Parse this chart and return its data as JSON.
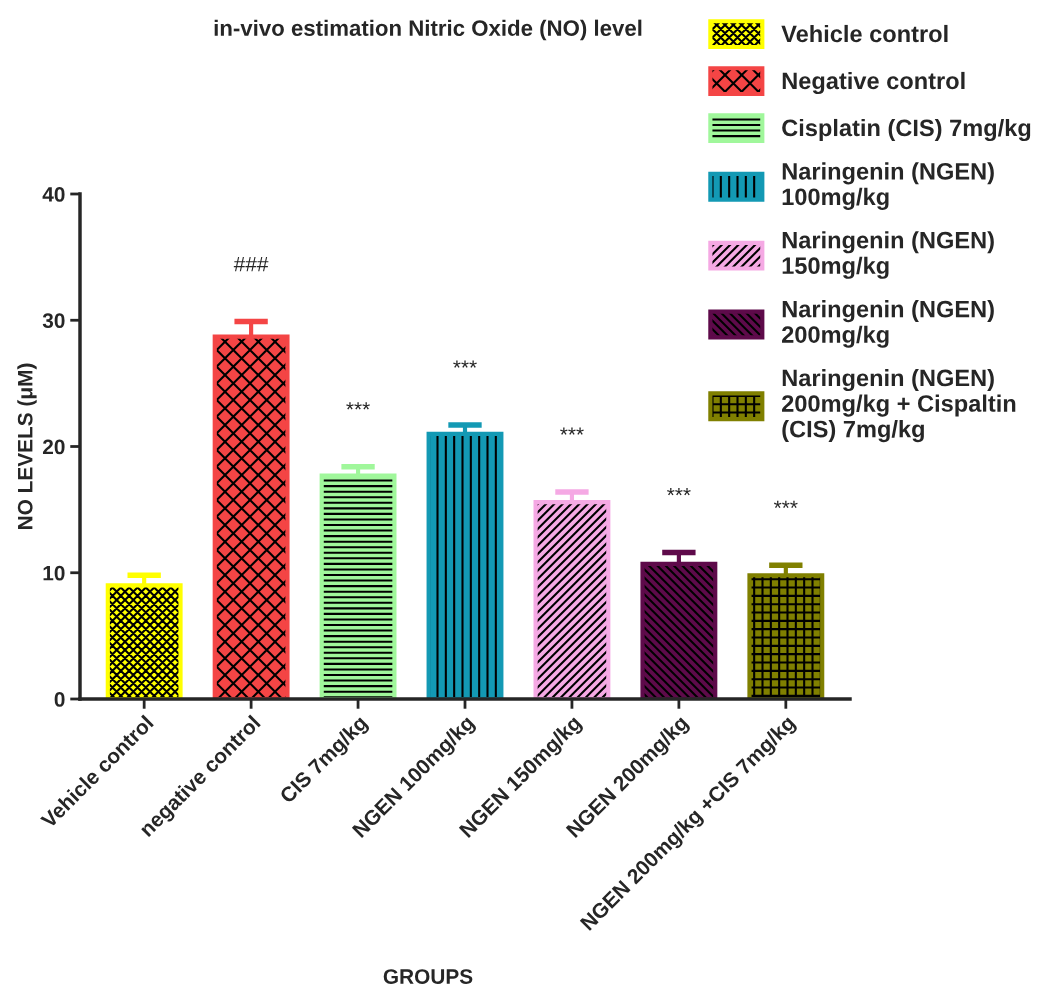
{
  "chart_data": {
    "type": "bar",
    "title": "in-vivo estimation Nitric Oxide (NO) level",
    "xlabel": "GROUPS",
    "ylabel": "NO LEVELS (μM)",
    "categories": [
      "Vehicle control",
      "negative control",
      "CIS 7mg/kg",
      "NGEN 100mg/kg",
      "NGEN 150mg/kg",
      "NGEN 200mg/kg",
      "NGEN 200mg/kg +CIS 7mg/kg"
    ],
    "series": [
      {
        "name": "Vehicle control",
        "color": "#ffff00",
        "values": [
          9.0,
          null,
          null,
          null,
          null,
          null,
          null
        ],
        "errors": [
          0.8,
          null,
          null,
          null,
          null,
          null,
          null
        ]
      },
      {
        "name": "Negative control",
        "color": "#f44545",
        "values": [
          null,
          28.7,
          null,
          null,
          null,
          null,
          null
        ],
        "errors": [
          null,
          1.2,
          null,
          null,
          null,
          null,
          null
        ]
      },
      {
        "name": "Cisplatin (CIS) 7mg/kg",
        "color": "#a0f79b",
        "values": [
          null,
          null,
          17.7,
          null,
          null,
          null,
          null
        ],
        "errors": [
          null,
          null,
          0.7,
          null,
          null,
          null,
          null
        ]
      },
      {
        "name": "Naringenin (NGEN)\n100mg/kg",
        "color": "#1399b4",
        "values": [
          null,
          null,
          null,
          21.0,
          null,
          null,
          null
        ],
        "errors": [
          null,
          null,
          null,
          0.7,
          null,
          null,
          null
        ]
      },
      {
        "name": "Naringenin (NGEN)\n150mg/kg",
        "color": "#f5a9e4",
        "values": [
          null,
          null,
          null,
          null,
          15.6,
          null,
          null
        ],
        "errors": [
          null,
          null,
          null,
          null,
          0.8,
          null,
          null
        ]
      },
      {
        "name": "Naringenin (NGEN)\n200mg/kg",
        "color": "#5e0a4a",
        "values": [
          null,
          null,
          null,
          null,
          null,
          10.7,
          null
        ],
        "errors": [
          null,
          null,
          null,
          null,
          null,
          0.9,
          null
        ]
      },
      {
        "name": "Naringenin (NGEN)\n200mg/kg + Cispaltin\n(CIS) 7mg/kg",
        "color": "#808000",
        "values": [
          null,
          null,
          null,
          null,
          null,
          null,
          9.8
        ],
        "errors": [
          null,
          null,
          null,
          null,
          null,
          null,
          0.8
        ]
      }
    ],
    "annotations": [
      "###",
      "***",
      "***",
      "***",
      "***",
      "***"
    ],
    "ylim": [
      0,
      40
    ],
    "yticks": [
      0,
      10,
      20,
      30,
      40
    ],
    "grid": false,
    "legend": "top right"
  }
}
